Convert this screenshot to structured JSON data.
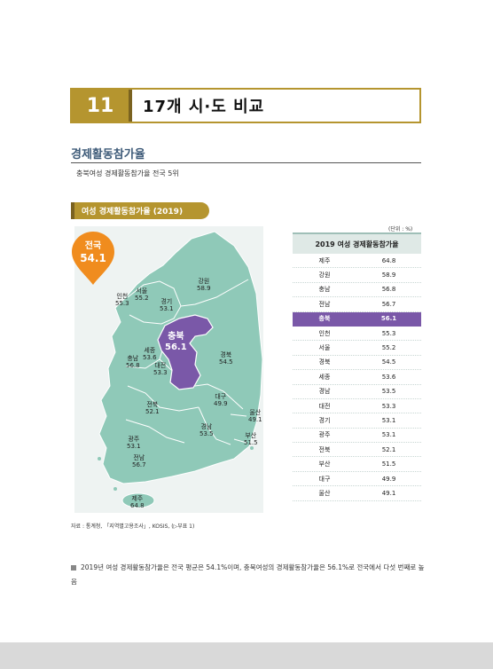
{
  "header": {
    "number": "11",
    "title": "17개 시·도 비교"
  },
  "section": {
    "title": "경제활동참가율",
    "subtitle": "충북여성 경제활동참가율 전국 5위"
  },
  "figure": {
    "label": "여성 경제활동참가율 (2019)"
  },
  "national": {
    "label": "전국",
    "value": "54.1"
  },
  "colors": {
    "accent": "#b5952f",
    "map": "#8fc9b8",
    "highlight": "#7a58a8",
    "table_head": "#dfe9e6"
  },
  "map_labels": {
    "incheon": {
      "name": "인천",
      "value": "55.3"
    },
    "seoul": {
      "name": "서울",
      "value": "55.2"
    },
    "gyeonggi": {
      "name": "경기",
      "value": "53.1"
    },
    "gangwon": {
      "name": "강원",
      "value": "58.9"
    },
    "chungbuk": {
      "name": "충북",
      "value": "56.1"
    },
    "sejong": {
      "name": "세종",
      "value": "53.6"
    },
    "chungnam": {
      "name": "충남",
      "value": "56.8"
    },
    "daejeon": {
      "name": "대전",
      "value": "53.3"
    },
    "gyeongbuk": {
      "name": "경북",
      "value": "54.5"
    },
    "jeonbuk": {
      "name": "전북",
      "value": "52.1"
    },
    "daegu": {
      "name": "대구",
      "value": "49.9"
    },
    "ulsan": {
      "name": "울산",
      "value": "49.1"
    },
    "gyeongnam": {
      "name": "경남",
      "value": "53.5"
    },
    "busan": {
      "name": "부산",
      "value": "51.5"
    },
    "gwangju": {
      "name": "광주",
      "value": "53.1"
    },
    "jeonnam": {
      "name": "전남",
      "value": "56.7"
    },
    "jeju": {
      "name": "제주",
      "value": "64.8"
    }
  },
  "table": {
    "unit": "(단위 : %)",
    "title": "2019 여성 경제활동참가율",
    "rows": [
      {
        "region": "제주",
        "value": "64.8"
      },
      {
        "region": "강원",
        "value": "58.9"
      },
      {
        "region": "충남",
        "value": "56.8"
      },
      {
        "region": "전남",
        "value": "56.7"
      },
      {
        "region": "충북",
        "value": "56.1"
      },
      {
        "region": "인천",
        "value": "55.3"
      },
      {
        "region": "서울",
        "value": "55.2"
      },
      {
        "region": "경북",
        "value": "54.5"
      },
      {
        "region": "세종",
        "value": "53.6"
      },
      {
        "region": "경남",
        "value": "53.5"
      },
      {
        "region": "대전",
        "value": "53.3"
      },
      {
        "region": "경기",
        "value": "53.1"
      },
      {
        "region": "광주",
        "value": "53.1"
      },
      {
        "region": "전북",
        "value": "52.1"
      },
      {
        "region": "부산",
        "value": "51.5"
      },
      {
        "region": "대구",
        "value": "49.9"
      },
      {
        "region": "울산",
        "value": "49.1"
      }
    ]
  },
  "source": "자료 : 통계청, 「지역별고용조사」, KOSIS, (▷부표 1)",
  "bullet": "2019년 여성 경제활동참가율은 전국 평균은 54.1%이며, 충북여성의 경제활동참가율은 56.1%로 전국에서 다섯 번째로 높음"
}
